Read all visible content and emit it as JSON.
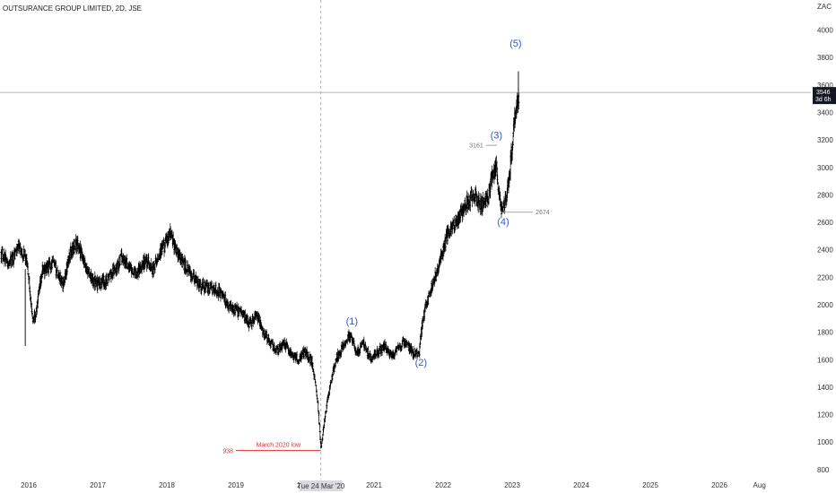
{
  "chart_data": {
    "type": "ohlc",
    "title": "OUTSURANCE GROUP LIMITED, 2D, JSE",
    "currency_label": "ZAC",
    "ylim": [
      740,
      4180
    ],
    "y_ticks": [
      800,
      1000,
      1200,
      1400,
      1600,
      1800,
      2000,
      2200,
      2400,
      2600,
      2800,
      3000,
      3200,
      3400,
      3600,
      3800,
      4000
    ],
    "x_ticks": [
      "2016",
      "2017",
      "2018",
      "2019",
      "2020",
      "2021",
      "2022",
      "2023",
      "2024",
      "2025",
      "2026",
      "Aug"
    ],
    "x_tick_years": [
      2016.0,
      2017.0,
      2018.0,
      2019.0,
      2020.0,
      2021.0,
      2022.0,
      2023.0,
      2024.0,
      2025.0,
      2026.0,
      2026.58
    ],
    "cursor_label": "Tue 24 Mar '20",
    "cursor_year": 2020.23,
    "price_path": [
      [
        2015.6,
        2380
      ],
      [
        2015.72,
        2300
      ],
      [
        2015.85,
        2420
      ],
      [
        2015.95,
        2350
      ],
      [
        2016.0,
        2200
      ],
      [
        2016.05,
        1900
      ],
      [
        2016.1,
        1920
      ],
      [
        2016.2,
        2250
      ],
      [
        2016.35,
        2300
      ],
      [
        2016.5,
        2150
      ],
      [
        2016.6,
        2380
      ],
      [
        2016.7,
        2450
      ],
      [
        2016.8,
        2300
      ],
      [
        2016.9,
        2200
      ],
      [
        2017.0,
        2150
      ],
      [
        2017.1,
        2170
      ],
      [
        2017.25,
        2250
      ],
      [
        2017.35,
        2350
      ],
      [
        2017.45,
        2280
      ],
      [
        2017.55,
        2230
      ],
      [
        2017.7,
        2330
      ],
      [
        2017.8,
        2250
      ],
      [
        2017.9,
        2380
      ],
      [
        2018.0,
        2460
      ],
      [
        2018.05,
        2520
      ],
      [
        2018.15,
        2380
      ],
      [
        2018.3,
        2250
      ],
      [
        2018.45,
        2150
      ],
      [
        2018.6,
        2120
      ],
      [
        2018.75,
        2100
      ],
      [
        2018.9,
        2000
      ],
      [
        2019.0,
        1960
      ],
      [
        2019.1,
        1940
      ],
      [
        2019.2,
        1860
      ],
      [
        2019.3,
        1920
      ],
      [
        2019.4,
        1800
      ],
      [
        2019.5,
        1720
      ],
      [
        2019.6,
        1670
      ],
      [
        2019.7,
        1720
      ],
      [
        2019.8,
        1640
      ],
      [
        2019.9,
        1600
      ],
      [
        2020.0,
        1660
      ],
      [
        2020.1,
        1580
      ],
      [
        2020.18,
        1320
      ],
      [
        2020.23,
        950
      ],
      [
        2020.28,
        1150
      ],
      [
        2020.35,
        1380
      ],
      [
        2020.45,
        1600
      ],
      [
        2020.55,
        1700
      ],
      [
        2020.65,
        1780
      ],
      [
        2020.75,
        1650
      ],
      [
        2020.85,
        1720
      ],
      [
        2020.95,
        1600
      ],
      [
        2021.05,
        1650
      ],
      [
        2021.15,
        1700
      ],
      [
        2021.25,
        1620
      ],
      [
        2021.35,
        1680
      ],
      [
        2021.45,
        1730
      ],
      [
        2021.55,
        1650
      ],
      [
        2021.65,
        1640
      ],
      [
        2021.7,
        1880
      ],
      [
        2021.75,
        2000
      ],
      [
        2021.85,
        2150
      ],
      [
        2021.95,
        2300
      ],
      [
        2022.05,
        2500
      ],
      [
        2022.15,
        2580
      ],
      [
        2022.25,
        2660
      ],
      [
        2022.35,
        2750
      ],
      [
        2022.45,
        2800
      ],
      [
        2022.55,
        2720
      ],
      [
        2022.65,
        2780
      ],
      [
        2022.72,
        2950
      ],
      [
        2022.77,
        3000
      ],
      [
        2022.8,
        2840
      ],
      [
        2022.85,
        2680
      ],
      [
        2022.9,
        2760
      ],
      [
        2022.95,
        2900
      ],
      [
        2023.0,
        3150
      ],
      [
        2023.03,
        3350
      ],
      [
        2023.06,
        3450
      ],
      [
        2023.08,
        3500
      ],
      [
        2023.1,
        3546
      ]
    ],
    "spikes": [
      {
        "x": 2015.95,
        "hi": 2260,
        "lo": 1700
      },
      {
        "x": 2023.09,
        "hi": 3700,
        "lo": 3450
      }
    ],
    "last_price": 3546,
    "last_price_label": "3546",
    "countdown_label": "3d 6h",
    "waves": [
      {
        "label": "(1)",
        "x": 2020.68,
        "y": 1855
      },
      {
        "label": "(2)",
        "x": 2021.68,
        "y": 1555
      },
      {
        "label": "(3)",
        "x": 2022.77,
        "y": 3210
      },
      {
        "label": "(4)",
        "x": 2022.87,
        "y": 2580
      },
      {
        "label": "(5)",
        "x": 2023.05,
        "y": 3880
      }
    ],
    "levels": [
      {
        "label": "2674",
        "value": 2674,
        "x_from": 2022.85,
        "x_to": 2023.3,
        "side": "right"
      },
      {
        "label": "3161",
        "value": 3161,
        "x_from": 2022.62,
        "x_to": 2022.78,
        "side": "left"
      }
    ],
    "march_low": {
      "label": "938",
      "note": "March 2020 low",
      "value": 938,
      "x_from": 2019.0,
      "x_to": 2020.23
    }
  }
}
